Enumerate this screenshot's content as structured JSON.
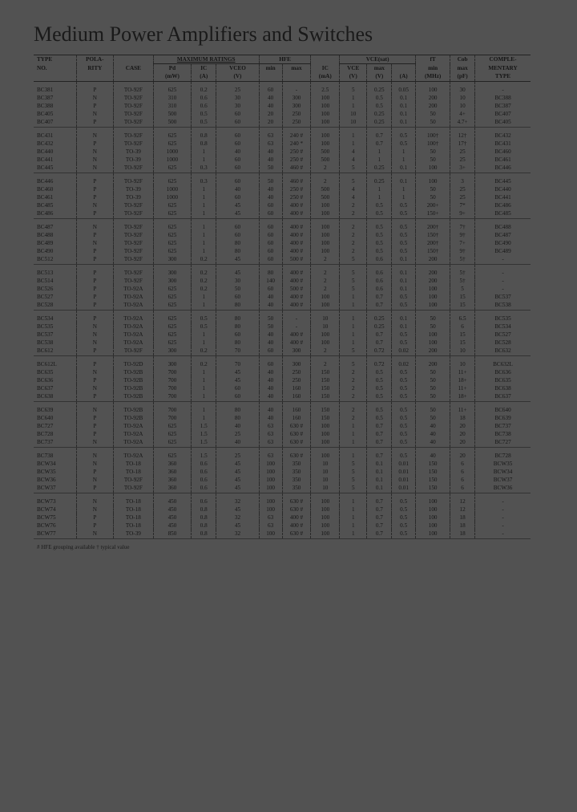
{
  "title": "Medium Power Amplifiers and Switches",
  "footnote": "# HFE grouping available   † typical value",
  "headers": {
    "groups": [
      "TYPE",
      "POLA-",
      "",
      "MAXIMUM RATINGS",
      "HFE",
      "",
      "VCE(sat)",
      "fT",
      "Cob",
      "COMPLE-"
    ],
    "mid": [
      "NO.",
      "RITY",
      "CASE",
      "Pd",
      "IC",
      "VCEO",
      "min",
      "max",
      "IC",
      "VCE",
      "max",
      "",
      "min",
      "max",
      "MENTARY"
    ],
    "units": [
      "",
      "",
      "",
      "(mW)",
      "(A)",
      "(V)",
      "",
      "",
      "(mA)",
      "(V)",
      "(V)",
      "(A)",
      "(MHz)",
      "(pF)",
      "TYPE"
    ]
  },
  "rows": [
    [
      "BC381",
      "P",
      "TO-92F",
      "625",
      "0.2",
      "25",
      "60",
      "-",
      "2.5",
      "5",
      "0.25",
      "0.05",
      "100",
      "30",
      "-"
    ],
    [
      "BC387",
      "N",
      "TO-92F",
      "310",
      "0.6",
      "30",
      "40",
      "300",
      "100",
      "1",
      "0.5",
      "0.1",
      "200",
      "10",
      "BC388"
    ],
    [
      "BC388",
      "P",
      "TO-92F",
      "310",
      "0.6",
      "30",
      "40",
      "300",
      "100",
      "1",
      "0.5",
      "0.1",
      "200",
      "10",
      "BC387"
    ],
    [
      "BC405",
      "N",
      "TO-92F",
      "500",
      "0.5",
      "60",
      "20",
      "250",
      "100",
      "10",
      "0.25",
      "0.1",
      "50",
      "4+",
      "BC407"
    ],
    [
      "BC407",
      "P",
      "TO-92F",
      "500",
      "0.5",
      "60",
      "20",
      "250",
      "100",
      "10",
      "0.25",
      "0.1",
      "50",
      "4.7+",
      "BC405"
    ],
    [
      "BC431",
      "N",
      "TO-92F",
      "625",
      "0.8",
      "60",
      "63",
      "240 #",
      "100",
      "1",
      "0.7",
      "0.5",
      "100†",
      "12†",
      "BC432"
    ],
    [
      "BC432",
      "P",
      "TO-92F",
      "625",
      "0.8",
      "60",
      "63",
      "240 *",
      "100",
      "1",
      "0.7",
      "0.5",
      "100†",
      "17†",
      "BC431"
    ],
    [
      "BC440",
      "N",
      "TO-39",
      "1000",
      "1",
      "40",
      "40",
      "250 #",
      "500",
      "4",
      "1",
      "1",
      "50",
      "25",
      "BC460"
    ],
    [
      "BC441",
      "N",
      "TO-39",
      "1000",
      "1",
      "60",
      "40",
      "250 #",
      "500",
      "4",
      "1",
      "1",
      "50",
      "25",
      "BC461"
    ],
    [
      "BC445",
      "N",
      "TO-92F",
      "625",
      "0.3",
      "60",
      "50",
      "460 #",
      "2",
      "5",
      "0.25",
      "0.1",
      "100",
      "3+",
      "BC446"
    ],
    [
      "BC446",
      "P",
      "TO-92F",
      "625",
      "0.3",
      "60",
      "50",
      "460 #",
      "2",
      "5",
      "0.25",
      "0.1",
      "100",
      "3",
      "BC445"
    ],
    [
      "BC460",
      "P",
      "TO-39",
      "1000",
      "1",
      "40",
      "40",
      "250 #",
      "500",
      "4",
      "1",
      "1",
      "50",
      "25",
      "BC440"
    ],
    [
      "BC461",
      "P",
      "TO-39",
      "1000",
      "1",
      "60",
      "40",
      "250 #",
      "500",
      "4",
      "1",
      "1",
      "50",
      "25",
      "BC441"
    ],
    [
      "BC485",
      "N",
      "TO-92F",
      "625",
      "1",
      "45",
      "60",
      "400 #",
      "100",
      "2",
      "0.5",
      "0.5",
      "200+",
      "7*",
      "BC486"
    ],
    [
      "BC486",
      "P",
      "TO-92F",
      "625",
      "1",
      "45",
      "60",
      "400 #",
      "100",
      "2",
      "0.5",
      "0.5",
      "150+",
      "9+",
      "BC485"
    ],
    [
      "BC487",
      "N",
      "TO-92F",
      "625",
      "1",
      "60",
      "60",
      "400 #",
      "100",
      "2",
      "0.5",
      "0.5",
      "200†",
      "7†",
      "BC488"
    ],
    [
      "BC488",
      "P",
      "TO-92F",
      "625",
      "1",
      "60",
      "60",
      "400 #",
      "100",
      "2",
      "0.5",
      "0.5",
      "150†",
      "9†",
      "BC487"
    ],
    [
      "BC489",
      "N",
      "TO-92F",
      "625",
      "1",
      "80",
      "60",
      "400 #",
      "100",
      "2",
      "0.5",
      "0.5",
      "200†",
      "7+",
      "BC490"
    ],
    [
      "BC490",
      "P",
      "TO-92F",
      "625",
      "1",
      "80",
      "60",
      "400 #",
      "100",
      "2",
      "0.5",
      "0.5",
      "150†",
      "9†",
      "BC489"
    ],
    [
      "BC512",
      "P",
      "TO-92F",
      "300",
      "0.2",
      "45",
      "60",
      "500 #",
      "2",
      "5",
      "0.6",
      "0.1",
      "200",
      "5†",
      "-"
    ],
    [
      "BC513",
      "P",
      "TO-92F",
      "300",
      "0.2",
      "45",
      "80",
      "400 #",
      "2",
      "5",
      "0.6",
      "0.1",
      "200",
      "5†",
      "-"
    ],
    [
      "BC514",
      "P",
      "TO-92F",
      "300",
      "0.2",
      "30",
      "140",
      "400 #",
      "2",
      "5",
      "0.6",
      "0.1",
      "200",
      "5†",
      "-"
    ],
    [
      "BC526",
      "P",
      "TO-92A",
      "625",
      "0.2",
      "50",
      "60",
      "500 #",
      "2",
      "5",
      "0.6",
      "0.1",
      "100",
      "5",
      "-"
    ],
    [
      "BC527",
      "P",
      "TO-92A",
      "625",
      "1",
      "60",
      "40",
      "400 #",
      "100",
      "1",
      "0.7",
      "0.5",
      "100",
      "15",
      "BC537"
    ],
    [
      "BC528",
      "P",
      "TO-92A",
      "625",
      "1",
      "80",
      "40",
      "400 #",
      "100",
      "1",
      "0.7",
      "0.5",
      "100",
      "15",
      "BC538"
    ],
    [
      "BC534",
      "P",
      "TO-92A",
      "625",
      "0.5",
      "80",
      "50",
      "-",
      "10",
      "1",
      "0.25",
      "0.1",
      "50",
      "6.5",
      "BC535"
    ],
    [
      "BC535",
      "N",
      "TO-92A",
      "625",
      "0.5",
      "80",
      "50",
      "-",
      "10",
      "1",
      "0.25",
      "0.1",
      "50",
      "6",
      "BC534"
    ],
    [
      "BC537",
      "N",
      "TO-92A",
      "625",
      "1",
      "60",
      "40",
      "400 #",
      "100",
      "1",
      "0.7",
      "0.5",
      "100",
      "15",
      "BC527"
    ],
    [
      "BC538",
      "N",
      "TO-92A",
      "625",
      "1",
      "80",
      "40",
      "400 #",
      "100",
      "1",
      "0.7",
      "0.5",
      "100",
      "15",
      "BC528"
    ],
    [
      "BC612",
      "P",
      "TO-92F",
      "300",
      "0.2",
      "70",
      "60",
      "300",
      "2",
      "5",
      "0.72",
      "0.02",
      "200",
      "10",
      "BC632"
    ],
    [
      "BC612L",
      "P",
      "TO-92D",
      "300",
      "0.2",
      "70",
      "60",
      "300",
      "2",
      "5",
      "0.72",
      "0.02",
      "200",
      "10",
      "BC632L"
    ],
    [
      "BC635",
      "N",
      "TO-92B",
      "700",
      "1",
      "45",
      "40",
      "250",
      "150",
      "2",
      "0.5",
      "0.5",
      "50",
      "11+",
      "BC636"
    ],
    [
      "BC636",
      "P",
      "TO-92B",
      "700",
      "1",
      "45",
      "40",
      "250",
      "150",
      "2",
      "0.5",
      "0.5",
      "50",
      "18+",
      "BC635"
    ],
    [
      "BC637",
      "N",
      "TO-92B",
      "700",
      "1",
      "60",
      "40",
      "160",
      "150",
      "2",
      "0.5",
      "0.5",
      "50",
      "11+",
      "BC638"
    ],
    [
      "BC638",
      "P",
      "TO-92B",
      "700",
      "1",
      "60",
      "40",
      "160",
      "150",
      "2",
      "0.5",
      "0.5",
      "50",
      "18+",
      "BC637"
    ],
    [
      "BC639",
      "N",
      "TO-92B",
      "700",
      "1",
      "80",
      "40",
      "160",
      "150",
      "2",
      "0.5",
      "0.5",
      "50",
      "11+",
      "BC640"
    ],
    [
      "BC640",
      "P",
      "TO-92B",
      "700",
      "1",
      "80",
      "40",
      "160",
      "150",
      "2",
      "0.5",
      "0.5",
      "50",
      "18",
      "BC639"
    ],
    [
      "BC727",
      "P",
      "TO-92A",
      "625",
      "1.5",
      "40",
      "63",
      "630 #",
      "100",
      "1",
      "0.7",
      "0.5",
      "40",
      "20",
      "BC737"
    ],
    [
      "BC728",
      "P",
      "TO-92A",
      "625",
      "1.5",
      "25",
      "63",
      "630 #",
      "100",
      "1",
      "0.7",
      "0.5",
      "40",
      "20",
      "BC738"
    ],
    [
      "BC737",
      "N",
      "TO-92A",
      "625",
      "1.5",
      "40",
      "63",
      "630 #",
      "100",
      "1",
      "0.7",
      "0.5",
      "40",
      "20",
      "BC727"
    ],
    [
      "BC738",
      "N",
      "TO-92A",
      "625",
      "1.5",
      "25",
      "63",
      "630 #",
      "100",
      "1",
      "0.7",
      "0.5",
      "40",
      "20",
      "BC728"
    ],
    [
      "BCW34",
      "N",
      "TO-18",
      "360",
      "0.6",
      "45",
      "100",
      "350",
      "10",
      "5",
      "0.1",
      "0.01",
      "150",
      "6",
      "BCW35"
    ],
    [
      "BCW35",
      "P",
      "TO-18",
      "360",
      "0.6",
      "45",
      "100",
      "350",
      "10",
      "5",
      "0.1",
      "0.01",
      "150",
      "6",
      "BCW34"
    ],
    [
      "BCW36",
      "N",
      "TO-92F",
      "360",
      "0.6",
      "45",
      "100",
      "350",
      "10",
      "5",
      "0.1",
      "0.01",
      "150",
      "6",
      "BCW37"
    ],
    [
      "BCW37",
      "P",
      "TO-92F",
      "360",
      "0.6",
      "45",
      "100",
      "350",
      "10",
      "5",
      "0.1",
      "0.01",
      "150",
      "6",
      "BCW36"
    ],
    [
      "BCW73",
      "N",
      "TO-18",
      "450",
      "0.6",
      "32",
      "100",
      "630 #",
      "100",
      "1",
      "0.7",
      "0.5",
      "100",
      "12",
      "-"
    ],
    [
      "BCW74",
      "N",
      "TO-18",
      "450",
      "0.8",
      "45",
      "100",
      "630 #",
      "100",
      "1",
      "0.7",
      "0.5",
      "100",
      "12",
      "-"
    ],
    [
      "BCW75",
      "P",
      "TO-18",
      "450",
      "0.8",
      "32",
      "63",
      "400 #",
      "100",
      "1",
      "0.7",
      "0.5",
      "100",
      "18",
      "-"
    ],
    [
      "BCW76",
      "P",
      "TO-18",
      "450",
      "0.8",
      "45",
      "63",
      "400 #",
      "100",
      "1",
      "0.7",
      "0.5",
      "100",
      "18",
      "-"
    ],
    [
      "BCW77",
      "N",
      "TO-39",
      "850",
      "0.8",
      "32",
      "100",
      "630 #",
      "100",
      "1",
      "0.7",
      "0.5",
      "100",
      "18",
      "-"
    ]
  ],
  "groupSize": 5
}
